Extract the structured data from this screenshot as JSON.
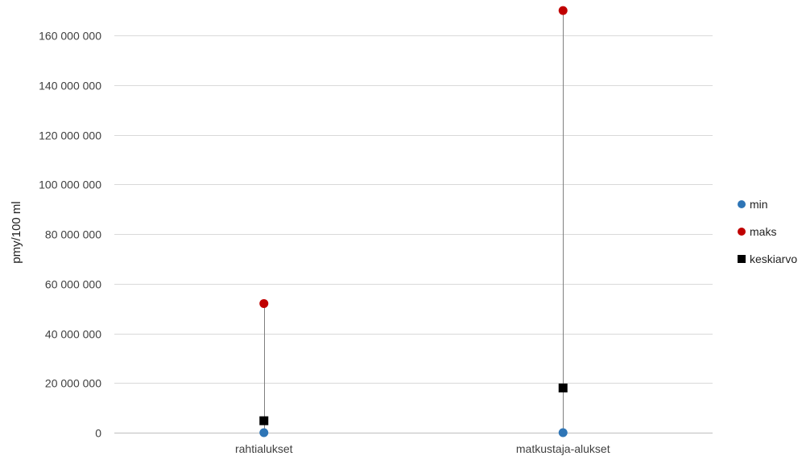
{
  "chart_data": {
    "type": "scatter",
    "title": "",
    "xlabel": "",
    "ylabel": "pmy/100 ml",
    "categories": [
      "rahtialukset",
      "matkustaja-alukset"
    ],
    "ylim": [
      0,
      160000000
    ],
    "yticks": [
      {
        "value": 0,
        "label": "0"
      },
      {
        "value": 20000000,
        "label": "20 000 000"
      },
      {
        "value": 40000000,
        "label": "40 000 000"
      },
      {
        "value": 60000000,
        "label": "60 000 000"
      },
      {
        "value": 80000000,
        "label": "80 000 000"
      },
      {
        "value": 100000000,
        "label": "100 000 000"
      },
      {
        "value": 120000000,
        "label": "120 000 000"
      },
      {
        "value": 140000000,
        "label": "140 000 000"
      },
      {
        "value": 160000000,
        "label": "160 000 000"
      }
    ],
    "grid": true,
    "legend_position": "right",
    "high_low_lines": true,
    "series": [
      {
        "name": "min",
        "marker": "circle",
        "color": "#2e75b6",
        "values": [
          0,
          0
        ]
      },
      {
        "name": "maks",
        "marker": "circle",
        "color": "#c00000",
        "values": [
          52000000,
          170000000
        ]
      },
      {
        "name": "keskiarvo",
        "marker": "square",
        "color": "#000000",
        "values": [
          4800000,
          18000000
        ]
      }
    ]
  }
}
